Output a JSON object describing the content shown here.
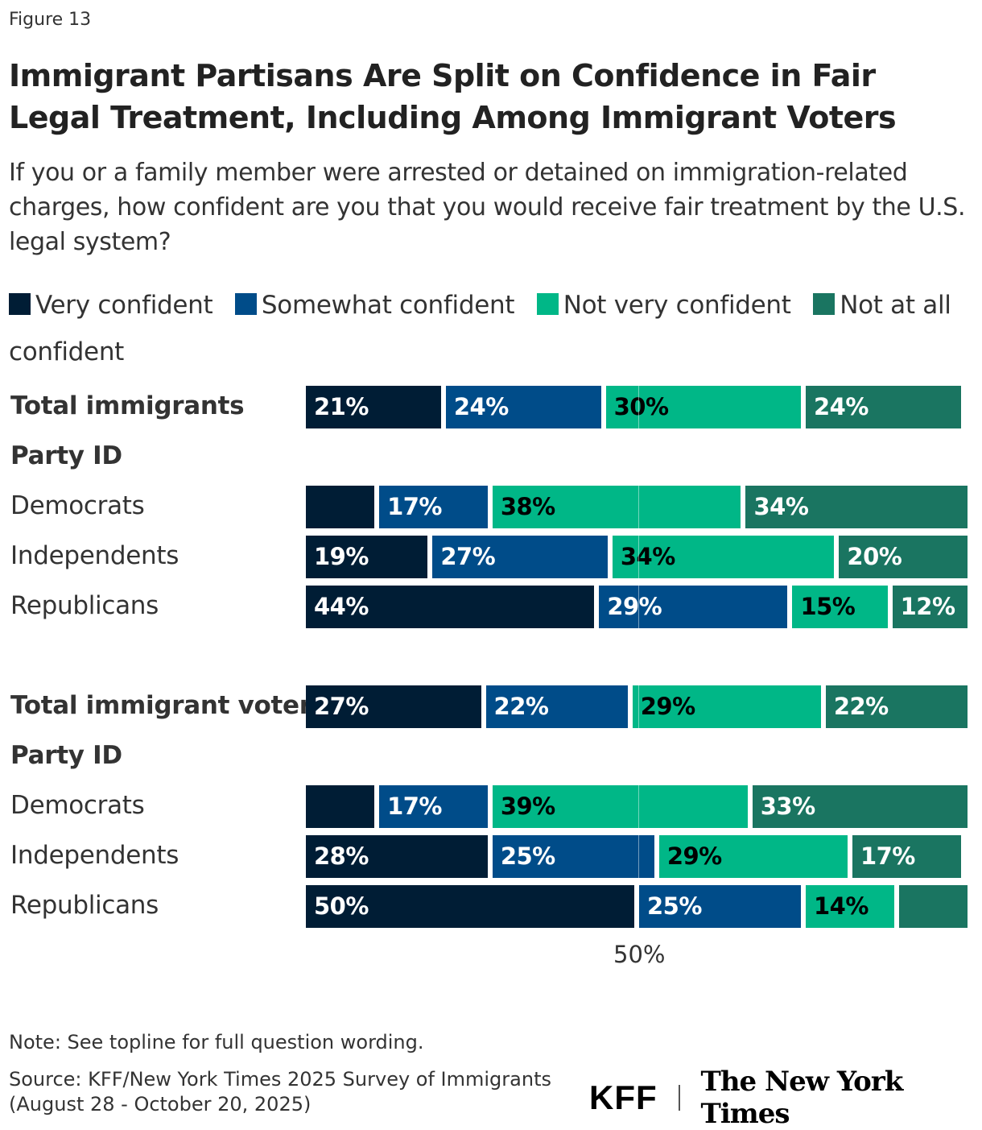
{
  "figure_label": "Figure 13",
  "colors": {
    "very": "#001d35",
    "somewhat": "#004c89",
    "notvery": "#00b787",
    "notatall": "#1a7561"
  },
  "chart_data": {
    "type": "bar",
    "orientation": "horizontal",
    "stacked": true,
    "title": "Immigrant Partisans Are Split on Confidence in Fair Legal Treatment, Including Among Immigrant Voters",
    "subtitle": "If you or a family member were arrested or detained on immigration-related charges, how confident are you that you would receive fair treatment by the U.S. legal system?",
    "legend": [
      "Very confident",
      "Somewhat confident",
      "Not very confident",
      "Not at all confident"
    ],
    "legend_placement": "top",
    "xlim": [
      0,
      100
    ],
    "x_ticks": [
      "50%"
    ],
    "rows": [
      {
        "label": "Total immigrants",
        "bold": true,
        "values": [
          21,
          24,
          30,
          24
        ],
        "labels": [
          "21%",
          "24%",
          "30%",
          "24%"
        ]
      },
      {
        "label": "Party ID",
        "bold": true,
        "header": true
      },
      {
        "label": "Democrats",
        "values": [
          11,
          17,
          38,
          34
        ],
        "labels": [
          "",
          "17%",
          "38%",
          "34%"
        ]
      },
      {
        "label": "Independents",
        "values": [
          19,
          27,
          34,
          20
        ],
        "labels": [
          "19%",
          "27%",
          "34%",
          "20%"
        ]
      },
      {
        "label": "Republicans",
        "values": [
          44,
          29,
          15,
          12
        ],
        "labels": [
          "44%",
          "29%",
          "15%",
          "12%"
        ]
      },
      {
        "label": "Total immigrant voters",
        "bold": true,
        "values": [
          27,
          22,
          29,
          22
        ],
        "labels": [
          "27%",
          "22%",
          "29%",
          "22%"
        ]
      },
      {
        "label": "Party ID",
        "bold": true,
        "header": true
      },
      {
        "label": "Democrats",
        "values": [
          11,
          17,
          39,
          33
        ],
        "labels": [
          "",
          "17%",
          "39%",
          "33%"
        ]
      },
      {
        "label": "Independents",
        "values": [
          28,
          25,
          29,
          17
        ],
        "labels": [
          "28%",
          "25%",
          "29%",
          "17%"
        ]
      },
      {
        "label": "Republicans",
        "values": [
          50,
          25,
          14,
          11
        ],
        "labels": [
          "50%",
          "25%",
          "14%",
          ""
        ]
      }
    ]
  },
  "note": "Note: See topline for full question wording.",
  "source_line1": "Source: KFF/New York Times 2025 Survey of Immigrants",
  "source_line2": "(August 28 - October 20, 2025)",
  "logos": {
    "kff": "KFF",
    "nyt": "The New York Times"
  }
}
